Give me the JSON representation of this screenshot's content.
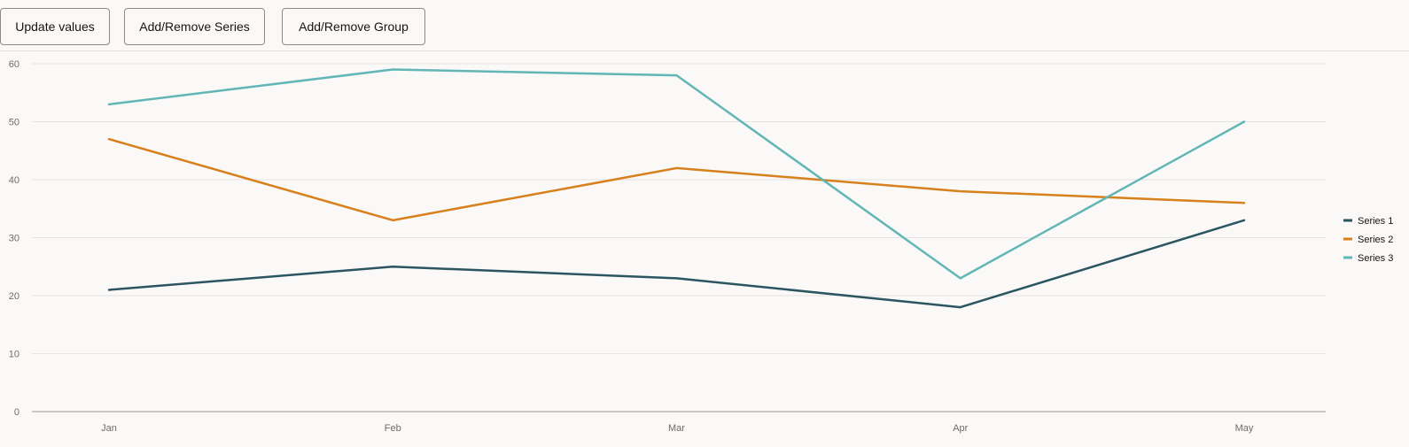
{
  "toolbar": {
    "update_label": "Update values",
    "series_label": "Add/Remove Series",
    "group_label": "Add/Remove Group"
  },
  "chart_data": {
    "type": "line",
    "categories": [
      "Jan",
      "Feb",
      "Mar",
      "Apr",
      "May"
    ],
    "series": [
      {
        "name": "Series 1",
        "values": [
          21,
          25,
          23,
          18,
          33
        ],
        "color": "#2b5560"
      },
      {
        "name": "Series 2",
        "values": [
          47,
          33,
          42,
          38,
          36
        ],
        "color": "#d7801c"
      },
      {
        "name": "Series 3",
        "values": [
          53,
          59,
          58,
          23,
          50
        ],
        "color": "#62b6b5"
      }
    ],
    "y_ticks": [
      0,
      10,
      20,
      30,
      40,
      50,
      60
    ],
    "ylim": [
      0,
      60
    ],
    "grid": true,
    "legend": "right"
  }
}
